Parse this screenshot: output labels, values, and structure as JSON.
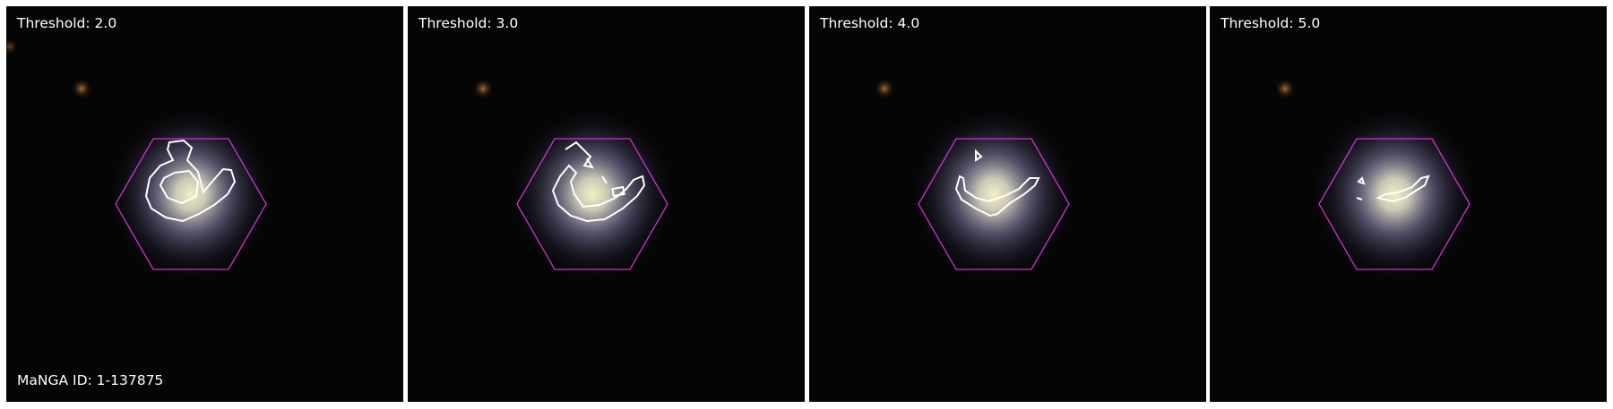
{
  "manga_id_label": "MaNGA ID: 1-137875",
  "colors": {
    "background": "#050505",
    "hexagon": "#cc33cc",
    "contour": "#ffffff",
    "galaxy_core": "#f2efb8",
    "galaxy_halo": "#8a86b8"
  },
  "panels": [
    {
      "threshold_label": "Threshold: 2.0"
    },
    {
      "threshold_label": "Threshold: 3.0"
    },
    {
      "threshold_label": "Threshold: 4.0"
    },
    {
      "threshold_label": "Threshold: 5.0"
    }
  ]
}
